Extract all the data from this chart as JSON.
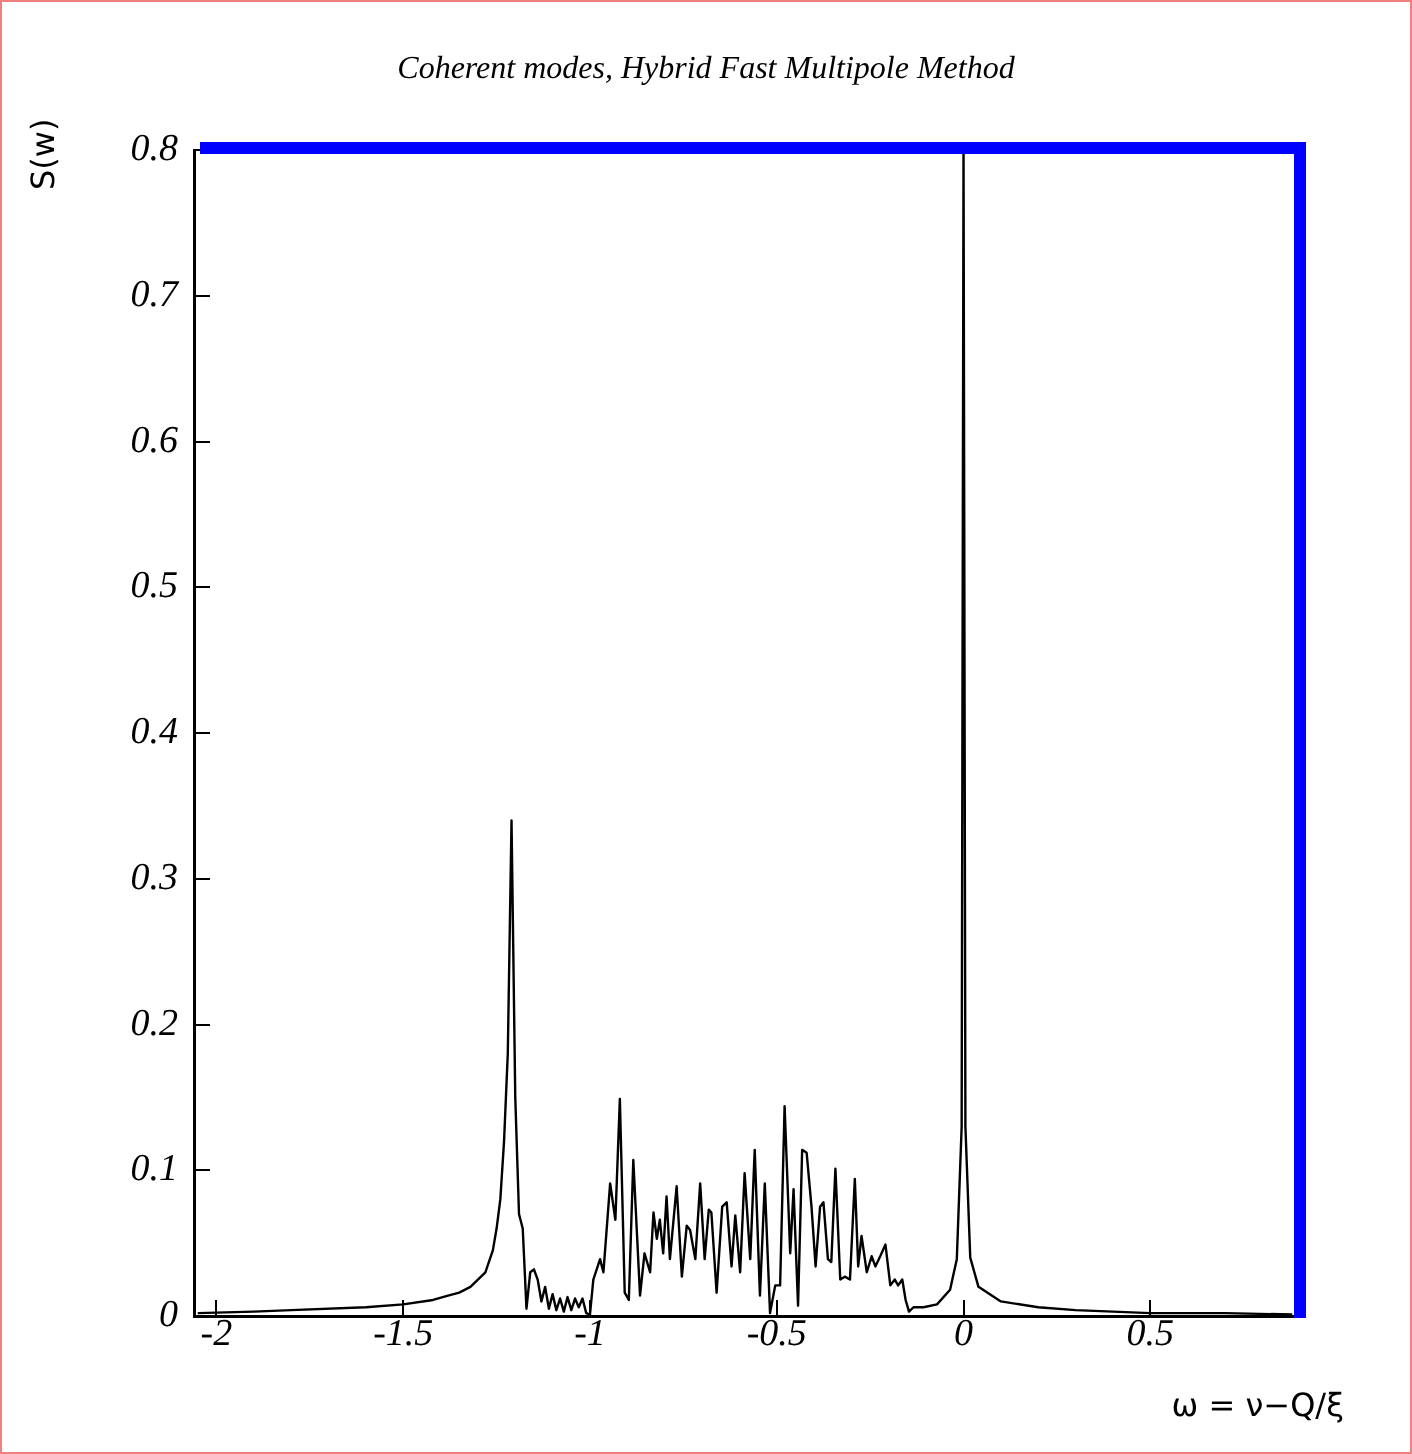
{
  "chart_data": {
    "type": "line",
    "title": "Coherent modes, Hybrid Fast Multipole Method",
    "xlabel": "ω = ν−Q/ξ",
    "ylabel": "S(w)",
    "xlim": [
      -2.06,
      0.89
    ],
    "ylim": [
      0,
      0.8
    ],
    "xticks": [
      -2,
      -1.5,
      -1,
      -0.5,
      0,
      0.5
    ],
    "yticks": [
      0,
      0.1,
      0.2,
      0.3,
      0.4,
      0.5,
      0.6,
      0.7,
      0.8
    ],
    "grid": false,
    "legend": false,
    "marker": "none",
    "line_style": "solid",
    "series": [
      {
        "color": "#000000",
        "x": [
          -2.05,
          -1.9,
          -1.8,
          -1.6,
          -1.5,
          -1.42,
          -1.38,
          -1.35,
          -1.32,
          -1.3,
          -1.28,
          -1.26,
          -1.25,
          -1.24,
          -1.23,
          -1.22,
          -1.21,
          -1.2,
          -1.19,
          -1.18,
          -1.17,
          -1.16,
          -1.15,
          -1.14,
          -1.13,
          -1.12,
          -1.11,
          -1.1,
          -1.09,
          -1.08,
          -1.07,
          -1.06,
          -1.05,
          -1.04,
          -1.03,
          -1.02,
          -1.01,
          -1.0,
          -0.991,
          -0.973,
          -0.964,
          -0.946,
          -0.932,
          -0.92,
          -0.907,
          -0.896,
          -0.884,
          -0.866,
          -0.854,
          -0.839,
          -0.83,
          -0.821,
          -0.813,
          -0.804,
          -0.795,
          -0.786,
          -0.768,
          -0.754,
          -0.741,
          -0.732,
          -0.718,
          -0.705,
          -0.693,
          -0.682,
          -0.675,
          -0.661,
          -0.646,
          -0.634,
          -0.621,
          -0.611,
          -0.598,
          -0.586,
          -0.571,
          -0.559,
          -0.545,
          -0.532,
          -0.518,
          -0.504,
          -0.491,
          -0.479,
          -0.464,
          -0.455,
          -0.443,
          -0.432,
          -0.42,
          -0.407,
          -0.396,
          -0.384,
          -0.375,
          -0.363,
          -0.354,
          -0.343,
          -0.33,
          -0.318,
          -0.304,
          -0.291,
          -0.282,
          -0.273,
          -0.259,
          -0.246,
          -0.236,
          -0.223,
          -0.209,
          -0.196,
          -0.184,
          -0.175,
          -0.164,
          -0.155,
          -0.146,
          -0.134,
          -0.107,
          -0.071,
          -0.036,
          -0.018,
          -0.005,
          0,
          0.005,
          0.018,
          0.04,
          0.1,
          0.2,
          0.3,
          0.5,
          0.7,
          0.88
        ],
        "values": [
          0.002,
          0.003,
          0.004,
          0.006,
          0.008,
          0.011,
          0.014,
          0.016,
          0.02,
          0.025,
          0.03,
          0.045,
          0.06,
          0.08,
          0.12,
          0.18,
          0.34,
          0.15,
          0.07,
          0.06,
          0.005,
          0.03,
          0.032,
          0.025,
          0.01,
          0.02,
          0.005,
          0.015,
          0.004,
          0.012,
          0.003,
          0.013,
          0.004,
          0.012,
          0.006,
          0.012,
          0.002,
          0.001,
          0.025,
          0.039,
          0.03,
          0.091,
          0.066,
          0.149,
          0.016,
          0.011,
          0.107,
          0.014,
          0.043,
          0.03,
          0.071,
          0.053,
          0.066,
          0.043,
          0.082,
          0.039,
          0.089,
          0.027,
          0.062,
          0.059,
          0.039,
          0.091,
          0.039,
          0.073,
          0.071,
          0.016,
          0.075,
          0.078,
          0.034,
          0.069,
          0.03,
          0.098,
          0.039,
          0.114,
          0.014,
          0.091,
          0.002,
          0.021,
          0.021,
          0.144,
          0.043,
          0.087,
          0.007,
          0.114,
          0.112,
          0.075,
          0.034,
          0.075,
          0.078,
          0.039,
          0.037,
          0.101,
          0.025,
          0.027,
          0.025,
          0.094,
          0.034,
          0.055,
          0.03,
          0.041,
          0.034,
          0.041,
          0.049,
          0.021,
          0.025,
          0.021,
          0.025,
          0.011,
          0.003,
          0.006,
          0.006,
          0.008,
          0.018,
          0.039,
          0.13,
          0.8,
          0.13,
          0.04,
          0.02,
          0.01,
          0.006,
          0.004,
          0.002,
          0.002,
          0.001
        ]
      }
    ]
  }
}
